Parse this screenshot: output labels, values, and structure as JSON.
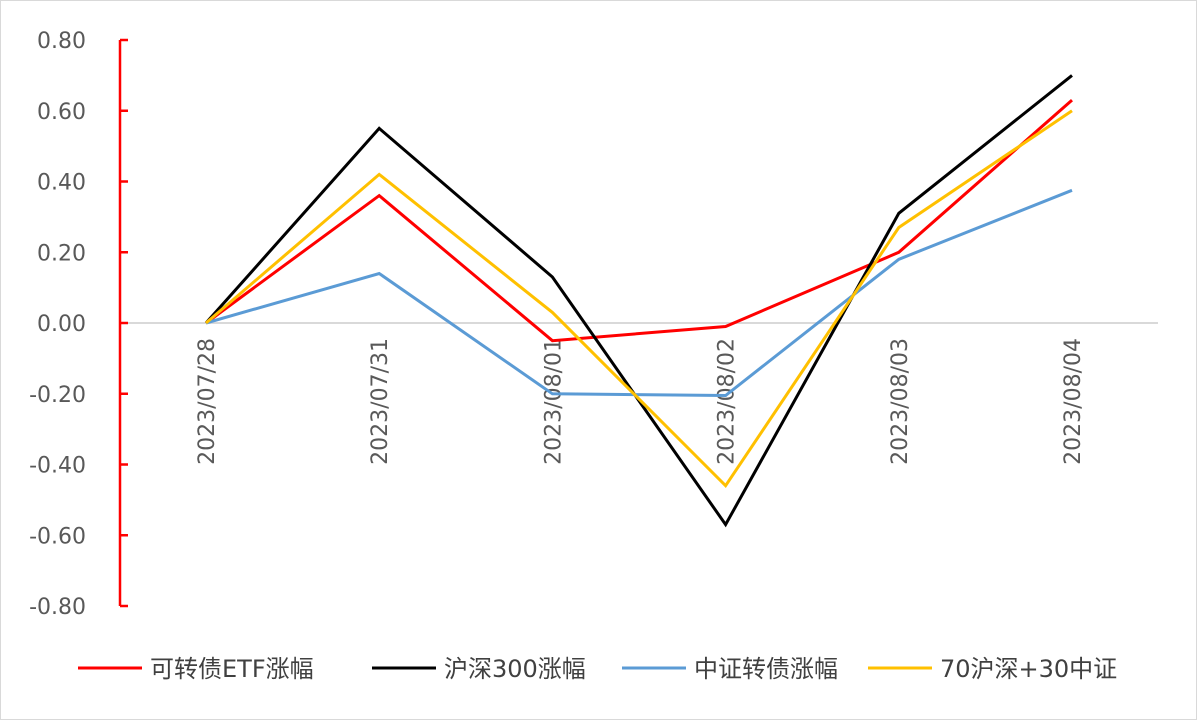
{
  "chart_data": {
    "type": "line",
    "title": "",
    "xlabel": "",
    "ylabel": "",
    "categories": [
      "2023/07/28",
      "2023/07/31",
      "2023/08/01",
      "2023/08/02",
      "2023/08/03",
      "2023/08/04"
    ],
    "ylim": [
      -0.8,
      0.8
    ],
    "yticks": [
      "0.80",
      "0.60",
      "0.40",
      "0.20",
      "0.00",
      "-0.20",
      "-0.40",
      "-0.60",
      "-0.80"
    ],
    "grid": false,
    "legend_position": "bottom",
    "series": [
      {
        "name": "可转债ETF涨幅",
        "color": "#ff0000",
        "values": [
          0.0,
          0.36,
          -0.05,
          -0.01,
          0.2,
          0.63
        ]
      },
      {
        "name": "沪深300涨幅",
        "color": "#000000",
        "values": [
          0.0,
          0.55,
          0.13,
          -0.57,
          0.31,
          0.7
        ]
      },
      {
        "name": "中证转债涨幅",
        "color": "#5b9bd5",
        "values": [
          0.0,
          0.14,
          -0.2,
          -0.205,
          0.18,
          0.375
        ]
      },
      {
        "name": "70沪深+30中证",
        "color": "#ffc000",
        "values": [
          0.0,
          0.42,
          0.03,
          -0.46,
          0.27,
          0.6
        ]
      }
    ],
    "axis_color": "#ff0000",
    "zero_line_color": "#d9d9d9"
  }
}
